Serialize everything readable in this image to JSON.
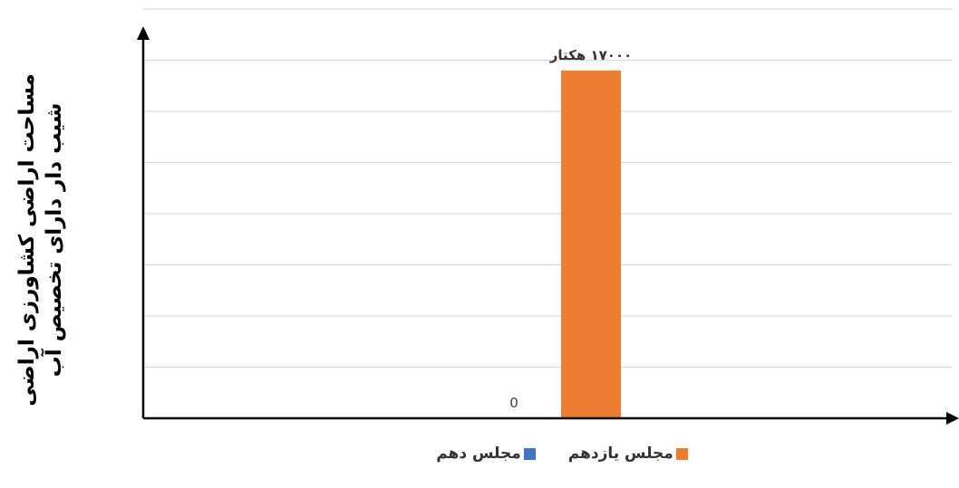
{
  "chart_data": {
    "type": "bar",
    "title": "",
    "ylabel_lines": [
      "مساحت اراضی کشاورزی اراضی",
      "شیب دار دارای تخصیص آب"
    ],
    "xlabel": "",
    "ylim": [
      0,
      20000
    ],
    "grid": true,
    "legend_position": "bottom",
    "series": [
      {
        "name": "مجلس دهم",
        "color": "#4472C4",
        "value": 0,
        "label": "0"
      },
      {
        "name": "مجلس یازدهم",
        "color": "#ED7D31",
        "value": 17000,
        "label": "۱۷۰۰۰ هکتار"
      }
    ]
  }
}
